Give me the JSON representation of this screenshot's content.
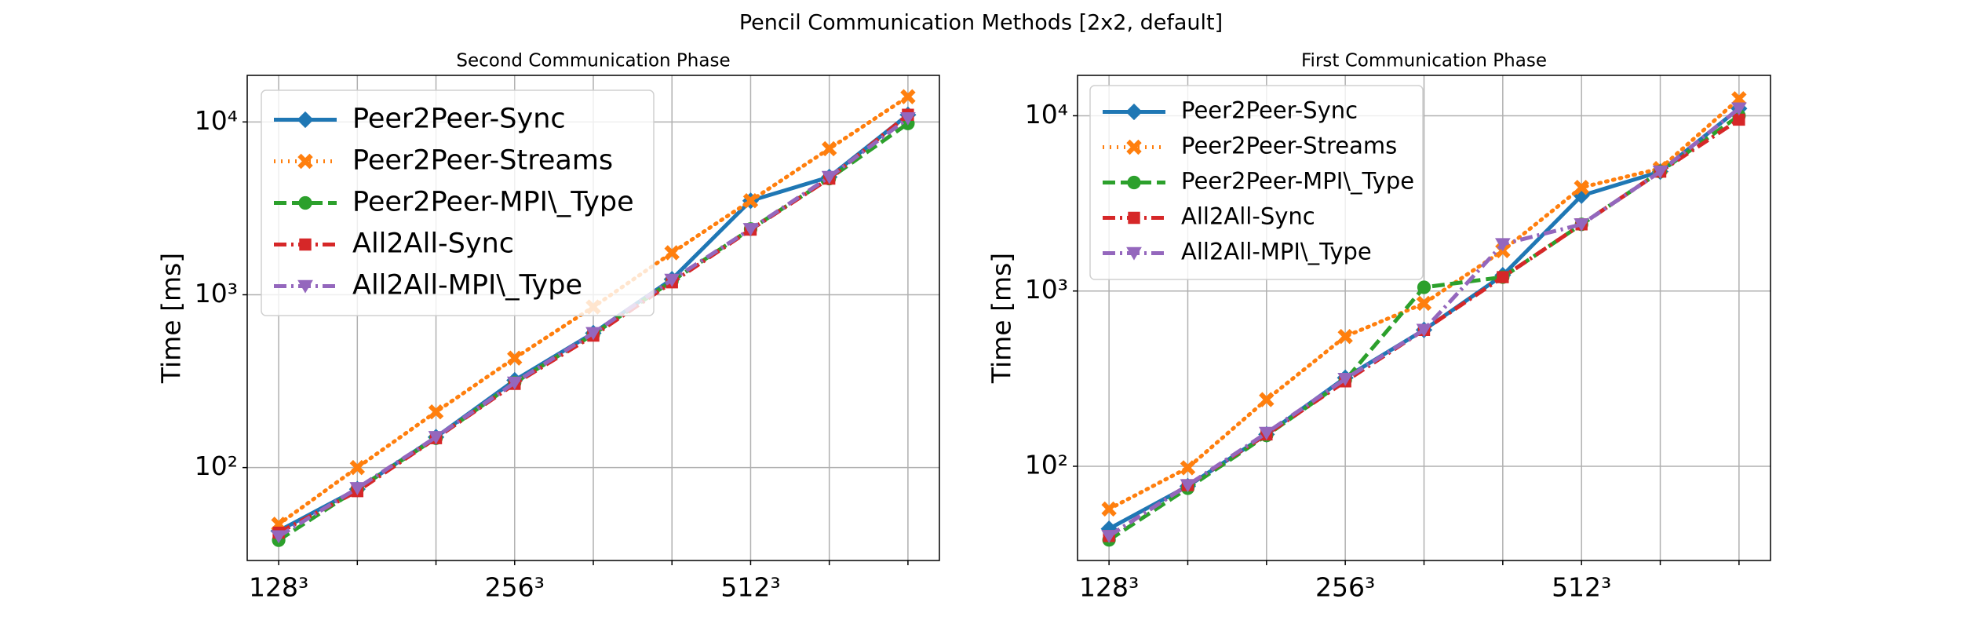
{
  "title": "Pencil Communication Methods [2x2, default]",
  "chart_data": [
    {
      "type": "line",
      "title": "Second Communication Phase",
      "ylabel": "Time [ms]",
      "categories": [
        "128³",
        null,
        null,
        "256³",
        null,
        null,
        "512³",
        null,
        null
      ],
      "log_y": true,
      "grid": true,
      "legend": "upper left",
      "ylim": [
        29,
        18600
      ],
      "yticks": [
        {
          "value": 100,
          "label": "10²"
        },
        {
          "value": 1000,
          "label": "10³"
        },
        {
          "value": 10000,
          "label": "10⁴"
        }
      ],
      "series": [
        {
          "name": "Peer2Peer-Sync",
          "color": "#1f77b4",
          "linestyle": "solid",
          "marker": "diamond",
          "values": [
            43,
            75,
            150,
            320,
            600,
            1230,
            3500,
            4800,
            11000
          ]
        },
        {
          "name": "Peer2Peer-Streams",
          "color": "#ff7f0e",
          "linestyle": "dotted",
          "marker": "x",
          "values": [
            47,
            100,
            210,
            430,
            850,
            1750,
            3500,
            7000,
            14000
          ]
        },
        {
          "name": "Peer2Peer-MPI\\_Type",
          "color": "#2ca02c",
          "linestyle": "dashed",
          "marker": "circle",
          "values": [
            38,
            75,
            148,
            310,
            590,
            1200,
            2400,
            4700,
            9800
          ]
        },
        {
          "name": "All2All-Sync",
          "color": "#d62728",
          "linestyle": "dashdot",
          "marker": "square",
          "values": [
            42,
            73,
            148,
            305,
            580,
            1180,
            2380,
            4700,
            11000
          ]
        },
        {
          "name": "All2All-MPI\\_Type",
          "color": "#9467bd",
          "linestyle": "dashdot",
          "marker": "triangle-down",
          "values": [
            40,
            76,
            150,
            310,
            600,
            1220,
            2400,
            4800,
            10500
          ]
        }
      ]
    },
    {
      "type": "line",
      "title": "First Communication Phase",
      "ylabel": "Time [ms]",
      "categories": [
        "128³",
        null,
        null,
        "256³",
        null,
        null,
        "512³",
        null,
        null
      ],
      "log_y": true,
      "grid": true,
      "legend": "upper left",
      "ylim": [
        29,
        17000
      ],
      "yticks": [
        {
          "value": 100,
          "label": "10²"
        },
        {
          "value": 1000,
          "label": "10³"
        },
        {
          "value": 10000,
          "label": "10⁴"
        }
      ],
      "series": [
        {
          "name": "Peer2Peer-Sync",
          "color": "#1f77b4",
          "linestyle": "solid",
          "marker": "diamond",
          "values": [
            44,
            77,
            152,
            320,
            600,
            1230,
            3500,
            4800,
            11000
          ]
        },
        {
          "name": "Peer2Peer-Streams",
          "color": "#ff7f0e",
          "linestyle": "dotted",
          "marker": "x",
          "values": [
            57,
            98,
            240,
            550,
            850,
            1700,
            3900,
            5000,
            12500
          ]
        },
        {
          "name": "Peer2Peer-MPI\\_Type",
          "color": "#2ca02c",
          "linestyle": "dashed",
          "marker": "circle",
          "values": [
            38,
            75,
            150,
            310,
            1050,
            1200,
            2400,
            4800,
            10000
          ]
        },
        {
          "name": "All2All-Sync",
          "color": "#d62728",
          "linestyle": "dashdot",
          "marker": "square",
          "values": [
            40,
            78,
            152,
            305,
            600,
            1200,
            2400,
            4800,
            9500
          ]
        },
        {
          "name": "All2All-MPI\\_Type",
          "color": "#9467bd",
          "linestyle": "dashdot",
          "marker": "triangle-down",
          "values": [
            40,
            78,
            155,
            315,
            600,
            1850,
            2400,
            4800,
            11000
          ]
        }
      ]
    }
  ]
}
